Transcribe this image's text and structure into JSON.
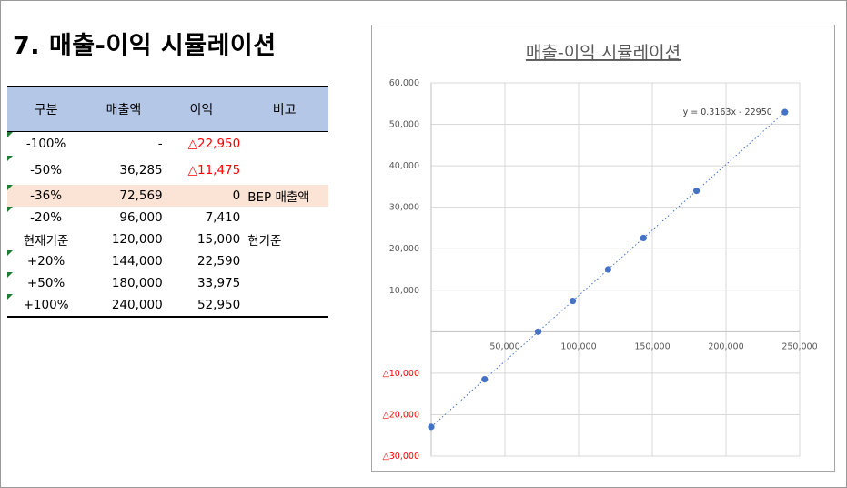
{
  "heading": "7. 매출-이익 시뮬레이션",
  "table": {
    "headers": [
      "구분",
      "매출액",
      "이익",
      "비고"
    ],
    "rows": [
      {
        "label": "-100%",
        "sales": "-",
        "profit": "△22,950",
        "note": "",
        "negative": true
      },
      {
        "label": "-50%",
        "sales": "36,285",
        "profit": "△11,475",
        "note": "",
        "negative": true
      },
      {
        "label": "-36%",
        "sales": "72,569",
        "profit": "0",
        "note": "BEP 매출액",
        "negative": false
      },
      {
        "label": "-20%",
        "sales": "96,000",
        "profit": "7,410",
        "note": "",
        "negative": false
      },
      {
        "label": "현재기준",
        "sales": "120,000",
        "profit": "15,000",
        "note": "현기준",
        "negative": false
      },
      {
        "label": "+20%",
        "sales": "144,000",
        "profit": "22,590",
        "note": "",
        "negative": false
      },
      {
        "label": "+50%",
        "sales": "180,000",
        "profit": "33,975",
        "note": "",
        "negative": false
      },
      {
        "label": "+100%",
        "sales": "240,000",
        "profit": "52,950",
        "note": "",
        "negative": false
      }
    ]
  },
  "chart_data": {
    "type": "scatter",
    "title": "매출-이익 시뮬레이션",
    "xlabel": "",
    "ylabel": "",
    "x": [
      0,
      36285,
      72569,
      96000,
      120000,
      144000,
      180000,
      240000
    ],
    "y": [
      -22950,
      -11475,
      0,
      7410,
      15000,
      22590,
      33975,
      52950
    ],
    "xlim": [
      0,
      250000
    ],
    "ylim": [
      -30000,
      60000
    ],
    "x_ticks": [
      {
        "value": 50000,
        "label": "50,000"
      },
      {
        "value": 100000,
        "label": "100,000"
      },
      {
        "value": 150000,
        "label": "150,000"
      },
      {
        "value": 200000,
        "label": "200,000"
      },
      {
        "value": 250000,
        "label": "250,000"
      }
    ],
    "y_ticks": [
      {
        "value": 60000,
        "label": "60,000"
      },
      {
        "value": 50000,
        "label": "50,000"
      },
      {
        "value": 40000,
        "label": "40,000"
      },
      {
        "value": 30000,
        "label": "30,000"
      },
      {
        "value": 20000,
        "label": "20,000"
      },
      {
        "value": 10000,
        "label": "10,000"
      },
      {
        "value": -10000,
        "label": "△10,000"
      },
      {
        "value": -20000,
        "label": "△20,000"
      },
      {
        "value": -30000,
        "label": "△30,000"
      }
    ],
    "trendline": {
      "slope": 0.3163,
      "intercept": -22950,
      "label": "y = 0.3163x - 22950"
    },
    "grid": true,
    "marker_color": "#4472c4",
    "negative_label_color": "#ff0000"
  }
}
